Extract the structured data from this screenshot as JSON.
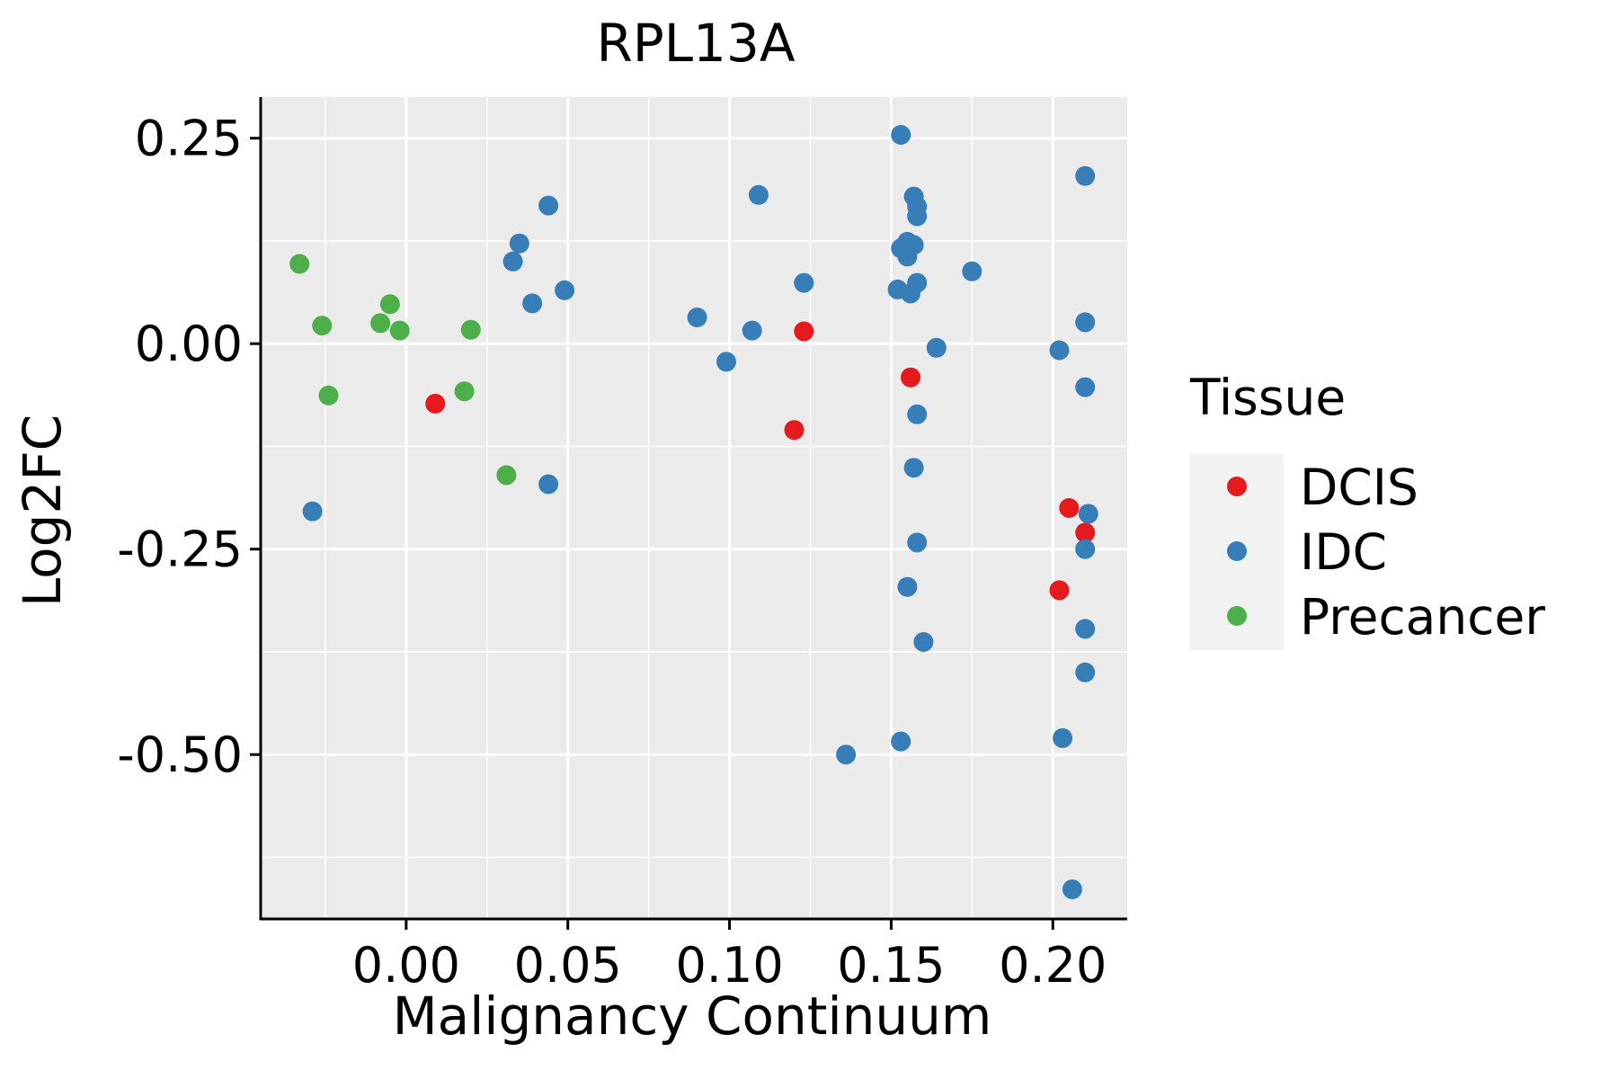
{
  "chart_data": {
    "type": "scatter",
    "title": "RPL13A",
    "xlabel": "Malignancy Continuum",
    "ylabel": "Log2FC",
    "xlim": [
      -0.045,
      0.223
    ],
    "ylim": [
      -0.7,
      0.3
    ],
    "xticks": [
      0.0,
      0.05,
      0.1,
      0.15,
      0.2
    ],
    "xtick_labels": [
      "0.00",
      "0.05",
      "0.10",
      "0.15",
      "0.20"
    ],
    "xticks_minor": [
      -0.025,
      0.025,
      0.075,
      0.125,
      0.175
    ],
    "yticks": [
      -0.5,
      -0.25,
      0.0,
      0.25
    ],
    "ytick_labels": [
      "-0.50",
      "-0.25",
      "0.00",
      "0.25"
    ],
    "yticks_minor": [
      -0.625,
      -0.375,
      -0.125,
      0.125
    ],
    "grid": true,
    "legend": {
      "title": "Tissue",
      "position": "right",
      "entries": [
        "DCIS",
        "IDC",
        "Precancer"
      ]
    },
    "colors": {
      "DCIS": "#E41A1C",
      "IDC": "#377EB8",
      "Precancer": "#4DAF4A",
      "panel_bg": "#EBEBEB",
      "grid": "#FFFFFF"
    },
    "series": [
      {
        "name": "DCIS",
        "points": [
          [
            0.009,
            -0.073
          ],
          [
            0.12,
            -0.105
          ],
          [
            0.123,
            0.015
          ],
          [
            0.156,
            -0.041
          ],
          [
            0.205,
            -0.2
          ],
          [
            0.21,
            -0.23
          ],
          [
            0.202,
            -0.3
          ]
        ]
      },
      {
        "name": "IDC",
        "points": [
          [
            -0.029,
            -0.204
          ],
          [
            0.033,
            0.1
          ],
          [
            0.035,
            0.122
          ],
          [
            0.039,
            0.049
          ],
          [
            0.044,
            0.168
          ],
          [
            0.044,
            -0.171
          ],
          [
            0.049,
            0.065
          ],
          [
            0.09,
            0.032
          ],
          [
            0.099,
            -0.022
          ],
          [
            0.107,
            0.016
          ],
          [
            0.109,
            0.181
          ],
          [
            0.123,
            0.074
          ],
          [
            0.136,
            -0.5
          ],
          [
            0.152,
            0.066
          ],
          [
            0.153,
            0.254
          ],
          [
            0.153,
            -0.484
          ],
          [
            0.153,
            0.116
          ],
          [
            0.155,
            0.124
          ],
          [
            0.155,
            0.106
          ],
          [
            0.155,
            -0.296
          ],
          [
            0.156,
            0.061
          ],
          [
            0.157,
            0.12
          ],
          [
            0.157,
            0.179
          ],
          [
            0.157,
            -0.151
          ],
          [
            0.158,
            0.167
          ],
          [
            0.158,
            0.155
          ],
          [
            0.158,
            0.074
          ],
          [
            0.158,
            -0.086
          ],
          [
            0.158,
            -0.242
          ],
          [
            0.16,
            -0.363
          ],
          [
            0.164,
            -0.005
          ],
          [
            0.175,
            0.088
          ],
          [
            0.202,
            -0.008
          ],
          [
            0.203,
            -0.48
          ],
          [
            0.206,
            -0.664
          ],
          [
            0.21,
            0.204
          ],
          [
            0.21,
            0.026
          ],
          [
            0.21,
            -0.053
          ],
          [
            0.211,
            -0.207
          ],
          [
            0.21,
            -0.25
          ],
          [
            0.21,
            -0.347
          ],
          [
            0.21,
            -0.4
          ]
        ]
      },
      {
        "name": "Precancer",
        "points": [
          [
            -0.033,
            0.097
          ],
          [
            -0.026,
            0.022
          ],
          [
            -0.024,
            -0.063
          ],
          [
            -0.008,
            0.025
          ],
          [
            -0.005,
            0.048
          ],
          [
            -0.002,
            0.016
          ],
          [
            0.018,
            -0.058
          ],
          [
            0.02,
            0.017
          ],
          [
            0.031,
            -0.16
          ]
        ]
      }
    ]
  }
}
